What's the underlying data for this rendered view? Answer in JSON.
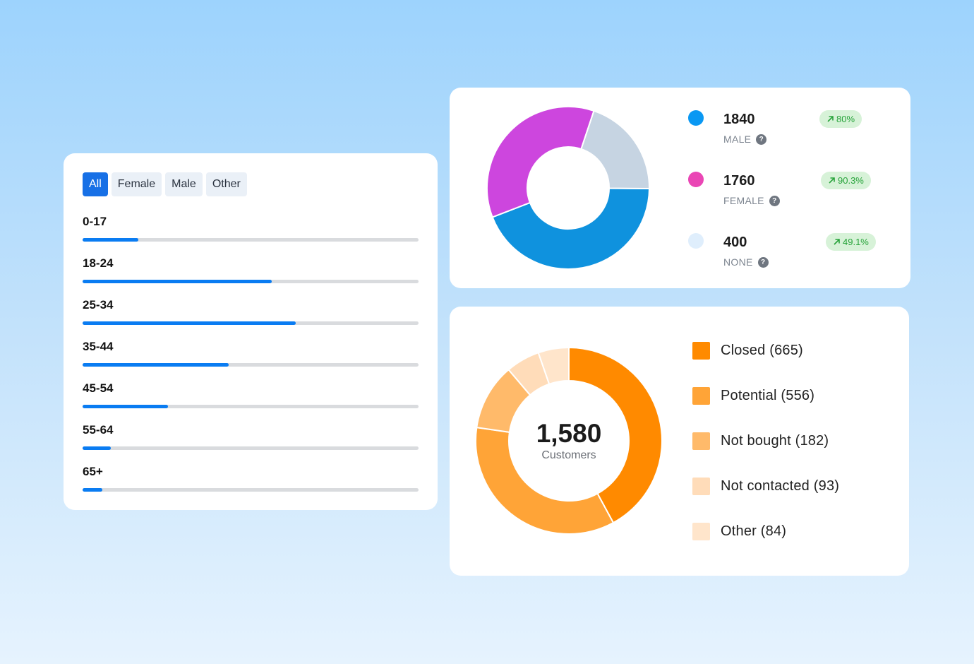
{
  "age_card": {
    "tabs": [
      {
        "label": "All",
        "active": true
      },
      {
        "label": "Female",
        "active": false
      },
      {
        "label": "Male",
        "active": false
      },
      {
        "label": "Other",
        "active": false
      }
    ],
    "rows": [
      {
        "label": "0-17",
        "fraction": 0.165
      },
      {
        "label": "18-24",
        "fraction": 0.563
      },
      {
        "label": "25-34",
        "fraction": 0.634
      },
      {
        "label": "35-44",
        "fraction": 0.434
      },
      {
        "label": "45-54",
        "fraction": 0.254
      },
      {
        "label": "55-64",
        "fraction": 0.085
      },
      {
        "label": "65+",
        "fraction": 0.059
      }
    ],
    "colors": {
      "fill": "#0a7cf2",
      "track": "#d9dbde",
      "active_tab": "#1770e6"
    }
  },
  "gender_card": {
    "items": [
      {
        "value": "1840",
        "label": "MALE",
        "change": "80%",
        "color": "#0a98f3",
        "trend_icon": "arrow-up-right-icon",
        "help_icon": "question-circle-icon"
      },
      {
        "value": "1760",
        "label": "FEMALE",
        "change": "90.3%",
        "color": "#ea46b5",
        "trend_icon": "arrow-up-right-icon",
        "help_icon": "question-circle-icon"
      },
      {
        "value": "400",
        "label": "NONE",
        "change": "49.1%",
        "color": "#dfeefc",
        "trend_icon": "arrow-up-right-icon",
        "help_icon": "question-circle-icon"
      }
    ],
    "help_glyph": "?"
  },
  "chart_data": [
    {
      "type": "pie",
      "donut": true,
      "labels": [
        "Male",
        "Female",
        "None"
      ],
      "values": [
        44,
        36,
        20
      ],
      "colors": [
        "#0f92de",
        "#cd46de",
        "#c6d4e2"
      ]
    },
    {
      "type": "pie",
      "donut": true,
      "center_value": "1,580",
      "center_label": "Customers",
      "labels": [
        "Closed (665)",
        "Potential (556)",
        "Not bought (182)",
        "Not contacted (93)",
        "Other (84)"
      ],
      "values": [
        665,
        556,
        182,
        93,
        84
      ],
      "colors": [
        "#ff8a00",
        "#ffa437",
        "#ffba6a",
        "#ffdcb9",
        "#ffe5cb"
      ]
    }
  ]
}
